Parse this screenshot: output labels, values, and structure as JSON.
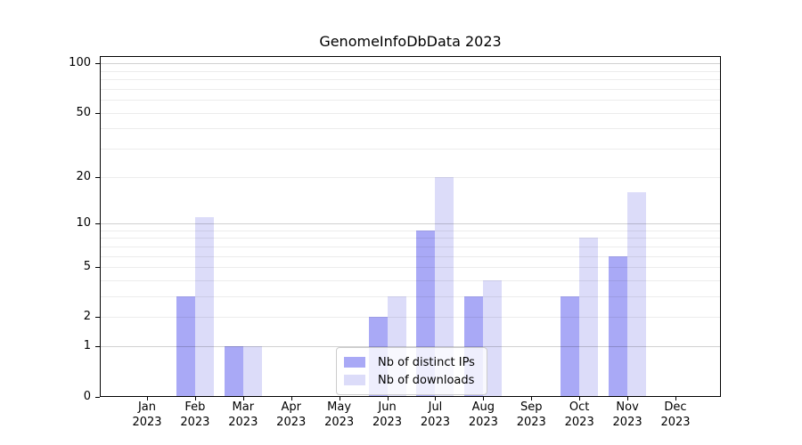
{
  "title": "GenomeInfoDbData 2023",
  "chart_data": {
    "type": "bar",
    "categories": [
      "Jan",
      "Feb",
      "Mar",
      "Apr",
      "May",
      "Jun",
      "Jul",
      "Aug",
      "Sep",
      "Oct",
      "Nov",
      "Dec"
    ],
    "year_label": "2023",
    "series": [
      {
        "name": "Nb of distinct IPs",
        "color": "#a9a9f6",
        "values": [
          0,
          3,
          1,
          0,
          0,
          2,
          9,
          3,
          0,
          3,
          6,
          0
        ]
      },
      {
        "name": "Nb of downloads",
        "color": "#dcdcf9",
        "values": [
          0,
          11,
          1,
          0,
          0,
          3,
          20,
          4,
          0,
          8,
          16,
          0
        ]
      }
    ],
    "y_axis": {
      "scale": "log1p",
      "ylim": [
        0,
        111
      ],
      "ticks": [
        0,
        1,
        2,
        5,
        10,
        20,
        50,
        100
      ],
      "major_gridlines": [
        1,
        10,
        100
      ],
      "minor_gridlines": [
        2,
        3,
        4,
        5,
        6,
        7,
        8,
        9,
        20,
        30,
        40,
        50,
        60,
        70,
        80,
        90
      ]
    },
    "legend": {
      "position": "lower center",
      "entries": [
        "Nb of distinct IPs",
        "Nb of downloads"
      ]
    },
    "grid": "horizontal, drawn over bars"
  }
}
